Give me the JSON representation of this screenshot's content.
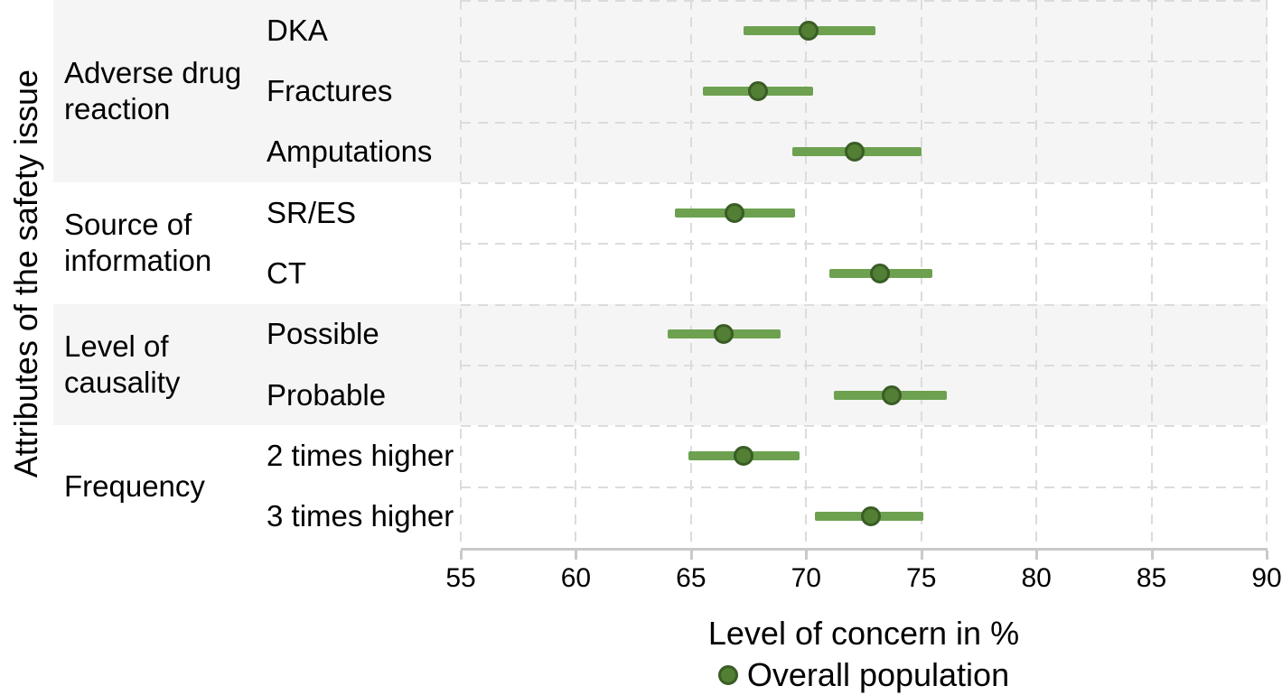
{
  "colors": {
    "band_gray": "#f5f5f5",
    "grid_dash": "#dcdcdc",
    "axis_line": "#c9c9c9",
    "interval_bar": "#6da150",
    "marker_fill": "#527f33",
    "marker_stroke": "#3a5c26",
    "text": "#000000"
  },
  "chart_data": {
    "type": "scatter",
    "subtype": "dot-and-interval (forest plot), horizontal",
    "ylabel": "Attributes of the safety issue",
    "xlabel": "Level of concern in %",
    "xlim": [
      55,
      90
    ],
    "x_ticks": [
      55,
      60,
      65,
      70,
      75,
      80,
      85,
      90
    ],
    "grid": "dashed vertical at ticks and horizontal at row boundaries",
    "legend": [
      {
        "label": "Overall population",
        "marker": "green-circle"
      }
    ],
    "groups": [
      {
        "label": "Adverse drug reaction",
        "shaded": true,
        "items": [
          {
            "label": "DKA",
            "value": 70.1,
            "ci_low": 67.3,
            "ci_high": 73.0
          },
          {
            "label": "Fractures",
            "value": 67.9,
            "ci_low": 65.5,
            "ci_high": 70.3
          },
          {
            "label": "Amputations",
            "value": 72.1,
            "ci_low": 69.4,
            "ci_high": 75.0
          }
        ]
      },
      {
        "label": "Source of information",
        "shaded": false,
        "items": [
          {
            "label": "SR/ES",
            "value": 66.9,
            "ci_low": 64.3,
            "ci_high": 69.5
          },
          {
            "label": "CT",
            "value": 73.2,
            "ci_low": 71.0,
            "ci_high": 75.5
          }
        ]
      },
      {
        "label": "Level of causality",
        "shaded": true,
        "items": [
          {
            "label": "Possible",
            "value": 66.4,
            "ci_low": 64.0,
            "ci_high": 68.9
          },
          {
            "label": "Probable",
            "value": 73.7,
            "ci_low": 71.2,
            "ci_high": 76.1
          }
        ]
      },
      {
        "label": "Frequency",
        "shaded": false,
        "items": [
          {
            "label": "2 times higher",
            "value": 67.3,
            "ci_low": 64.9,
            "ci_high": 69.7
          },
          {
            "label": "3 times higher",
            "value": 72.8,
            "ci_low": 70.4,
            "ci_high": 75.1
          }
        ]
      }
    ]
  }
}
